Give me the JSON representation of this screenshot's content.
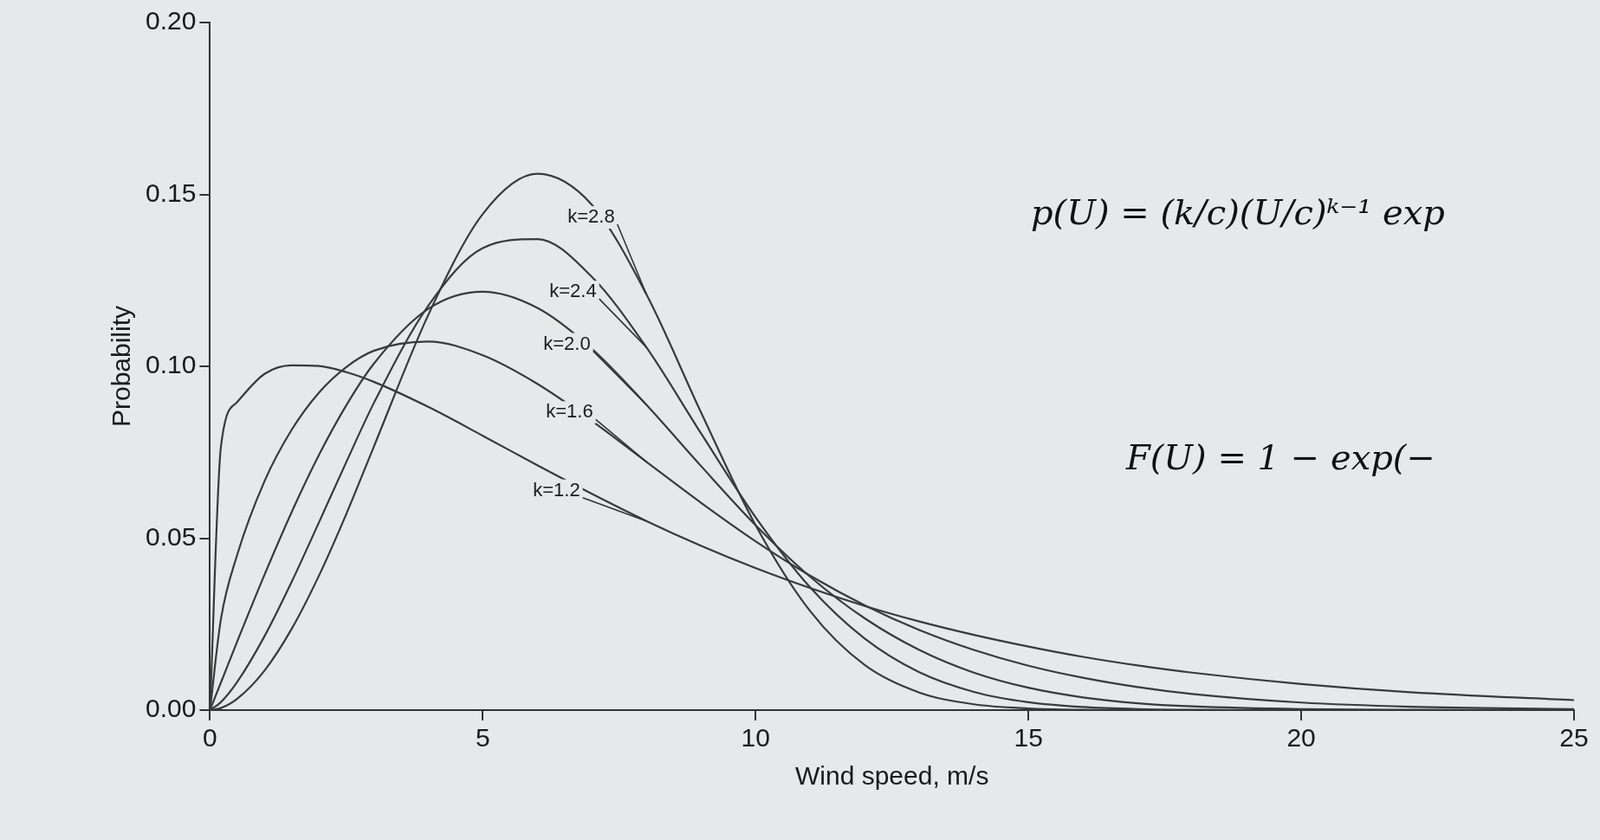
{
  "chart_data": {
    "type": "line",
    "x_label": "Wind speed, m/s",
    "y_label": "Probability",
    "annotations": [
      "p(U) = (k/c)(U/c)ᵏ⁻¹ exp",
      "F(U) = 1 − exp(−"
    ],
    "x": [
      0,
      0.2,
      0.5,
      1,
      1.5,
      2,
      2.5,
      3,
      4,
      5,
      6,
      7,
      8,
      9,
      10,
      11,
      12,
      13,
      14,
      15,
      16,
      17,
      18,
      20,
      22,
      25
    ],
    "series": [
      {
        "name": "k=1.2",
        "color": "#3a3a3a",
        "values": [
          0,
          0.0765,
          0.0896,
          0.0978,
          0.1003,
          0.1001,
          0.0983,
          0.0955,
          0.0882,
          0.0798,
          0.0712,
          0.0629,
          0.055,
          0.0478,
          0.0413,
          0.0355,
          0.0303,
          0.0258,
          0.0219,
          0.0185,
          0.0155,
          0.013,
          0.0109,
          0.0076,
          0.0052,
          0.0029
        ]
      },
      {
        "name": "k=1.6",
        "color": "#3a3a3a",
        "values": [
          0,
          0.0264,
          0.0452,
          0.0666,
          0.0816,
          0.0924,
          0.0998,
          0.1045,
          0.1072,
          0.1032,
          0.0949,
          0.0841,
          0.0722,
          0.0603,
          0.0491,
          0.0391,
          0.0305,
          0.0233,
          0.0175,
          0.0129,
          0.0094,
          0.0067,
          0.0047,
          0.0022,
          0.001,
          0.0003
        ]
      },
      {
        "name": "k=2.0",
        "color": "#3a3a3a",
        "values": [
          0,
          0.008,
          0.02,
          0.0394,
          0.0577,
          0.0743,
          0.0887,
          0.1007,
          0.1167,
          0.1217,
          0.117,
          0.1051,
          0.0888,
          0.071,
          0.0538,
          0.0388,
          0.0267,
          0.0175,
          0.0109,
          0.0065,
          0.0037,
          0.002,
          0.0011,
          0.0003,
          0.0001,
          0
        ]
      },
      {
        "name": "k=2.4",
        "color": "#3a3a3a",
        "values": [
          0,
          0.0023,
          0.0082,
          0.0215,
          0.0374,
          0.0547,
          0.0722,
          0.0892,
          0.1176,
          0.1344,
          0.137,
          0.126,
          0.1055,
          0.0805,
          0.0561,
          0.0357,
          0.0208,
          0.011,
          0.0053,
          0.0023,
          0.0009,
          0.0003,
          0.0001,
          0,
          0,
          0
        ]
      },
      {
        "name": "k=2.8",
        "color": "#3a3a3a",
        "values": [
          0,
          0.0006,
          0.0033,
          0.0115,
          0.0237,
          0.0392,
          0.0571,
          0.0765,
          0.1149,
          0.1443,
          0.156,
          0.147,
          0.1209,
          0.0866,
          0.0538,
          0.0288,
          0.0131,
          0.0051,
          0.0017,
          0.0005,
          0.0001,
          0,
          0,
          0,
          0,
          0
        ]
      }
    ],
    "xlim": [
      0,
      25
    ],
    "xticks": [
      0,
      5,
      10,
      15,
      20,
      25
    ],
    "ylim": [
      0,
      0.2
    ],
    "yticks": [
      {
        "value": 0,
        "label": "0.00"
      },
      {
        "value": 0.05,
        "label": "0.05"
      },
      {
        "value": 0.1,
        "label": "0.10"
      },
      {
        "value": 0.15,
        "label": "0.15"
      },
      {
        "value": 0.2,
        "label": "0.20"
      }
    ],
    "grid": false
  }
}
